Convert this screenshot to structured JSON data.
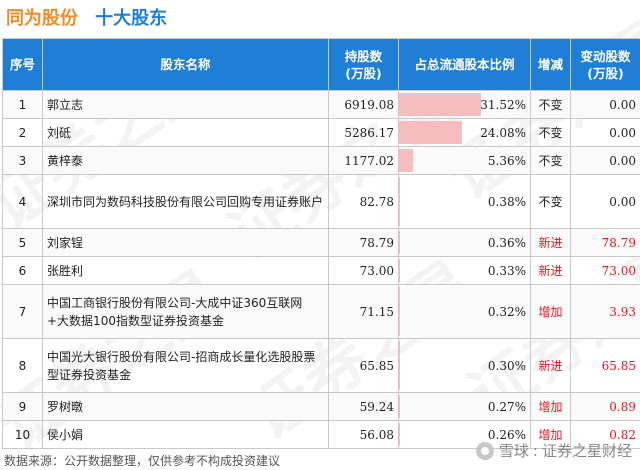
{
  "header": {
    "company": "同为股份",
    "subtitle": "十大股东"
  },
  "columns": [
    "序号",
    "股东名称",
    "持股数\n(万股)",
    "占总流通股本比例",
    "增减",
    "变动股数\n(万股)"
  ],
  "rows": [
    {
      "idx": "1",
      "name": "郭立志",
      "shares": "6919.08",
      "ratio": 31.52,
      "ratio_text": "31.52%",
      "change": "不变",
      "change_color": "#222222",
      "delta": "0.00"
    },
    {
      "idx": "2",
      "name": "刘砥",
      "shares": "5286.17",
      "ratio": 24.08,
      "ratio_text": "24.08%",
      "change": "不变",
      "change_color": "#222222",
      "delta": "0.00"
    },
    {
      "idx": "3",
      "name": "黄梓泰",
      "shares": "1177.02",
      "ratio": 5.36,
      "ratio_text": "5.36%",
      "change": "不变",
      "change_color": "#222222",
      "delta": "0.00"
    },
    {
      "idx": "4",
      "name": "深圳市同为数码科技股份有限公司回购专用证券账户",
      "shares": "82.78",
      "ratio": 0.38,
      "ratio_text": "0.38%",
      "change": "不变",
      "change_color": "#222222",
      "delta": "0.00"
    },
    {
      "idx": "5",
      "name": "刘家锃",
      "shares": "78.79",
      "ratio": 0.36,
      "ratio_text": "0.36%",
      "change": "新进",
      "change_color": "#e8161b",
      "delta": "78.79"
    },
    {
      "idx": "6",
      "name": "张胜利",
      "shares": "73.00",
      "ratio": 0.33,
      "ratio_text": "0.33%",
      "change": "新进",
      "change_color": "#e8161b",
      "delta": "73.00"
    },
    {
      "idx": "7",
      "name": "中国工商银行股份有限公司-大成中证360互联网+大数据100指数型证券投资基金",
      "shares": "71.15",
      "ratio": 0.32,
      "ratio_text": "0.32%",
      "change": "增加",
      "change_color": "#e8161b",
      "delta": "3.93"
    },
    {
      "idx": "8",
      "name": "中国光大银行股份有限公司-招商成长量化选股股票型证券投资基金",
      "shares": "65.85",
      "ratio": 0.3,
      "ratio_text": "0.30%",
      "change": "新进",
      "change_color": "#e8161b",
      "delta": "65.85"
    },
    {
      "idx": "9",
      "name": "罗树暾",
      "shares": "59.24",
      "ratio": 0.27,
      "ratio_text": "0.27%",
      "change": "增加",
      "change_color": "#e8161b",
      "delta": "0.89"
    },
    {
      "idx": "10",
      "name": "侯小娟",
      "shares": "56.08",
      "ratio": 0.26,
      "ratio_text": "0.26%",
      "change": "增加",
      "change_color": "#e8161b",
      "delta": "0.82"
    }
  ],
  "footer": "数据来源：公开数据整理，仅供参考不构成投资建议",
  "brand": {
    "left": "雪球",
    "sep": ":",
    "right": "证券之星财经"
  },
  "watermark": "证券之星",
  "colors": {
    "header_bg": "#1f7fd6",
    "company": "#f08c28",
    "bar": "#f7bcbe",
    "red": "#e8161b"
  }
}
